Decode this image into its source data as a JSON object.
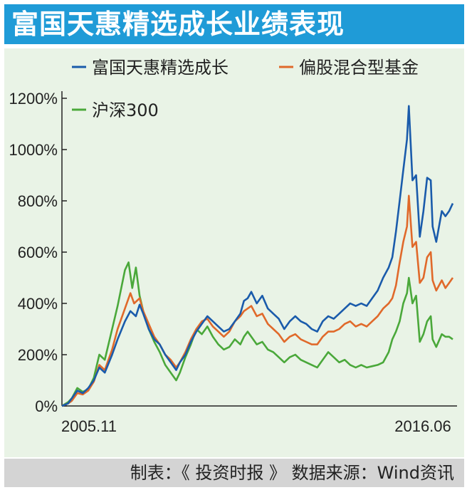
{
  "header": {
    "title": "富国天惠精选成长业绩表现"
  },
  "footer": {
    "text": "制表：《 投资时报 》 数据来源：Wind资讯"
  },
  "colors": {
    "title_bg": "#1f9bd7",
    "panel_bg": "#e9f3e6",
    "footer_bg": "#d4d4d4"
  },
  "chart_data": {
    "type": "line",
    "title": "",
    "xlabel": "",
    "ylabel": "",
    "x_tick_labels": [
      "2005.11",
      "2016.06"
    ],
    "x_start": 2005.83,
    "x_end": 2016.5,
    "ylim": [
      0,
      1200
    ],
    "y_ticks": [
      0,
      200,
      400,
      600,
      800,
      1000,
      1200
    ],
    "y_tick_labels": [
      "0%",
      "200%",
      "400%",
      "600%",
      "800%",
      "1000%",
      "1200%"
    ],
    "grid": false,
    "legend_position": "top",
    "series": [
      {
        "name": "富国天惠精选成长",
        "color": "#1a5bab",
        "points": [
          [
            2005.83,
            0
          ],
          [
            2006.0,
            10
          ],
          [
            2006.1,
            30
          ],
          [
            2006.25,
            60
          ],
          [
            2006.4,
            50
          ],
          [
            2006.55,
            70
          ],
          [
            2006.7,
            100
          ],
          [
            2006.85,
            150
          ],
          [
            2007.0,
            130
          ],
          [
            2007.2,
            200
          ],
          [
            2007.35,
            260
          ],
          [
            2007.55,
            330
          ],
          [
            2007.7,
            370
          ],
          [
            2007.85,
            350
          ],
          [
            2007.95,
            395
          ],
          [
            2008.05,
            360
          ],
          [
            2008.2,
            300
          ],
          [
            2008.35,
            260
          ],
          [
            2008.5,
            240
          ],
          [
            2008.65,
            200
          ],
          [
            2008.8,
            170
          ],
          [
            2008.95,
            140
          ],
          [
            2009.05,
            170
          ],
          [
            2009.2,
            200
          ],
          [
            2009.35,
            250
          ],
          [
            2009.5,
            290
          ],
          [
            2009.65,
            320
          ],
          [
            2009.8,
            350
          ],
          [
            2009.95,
            330
          ],
          [
            2010.1,
            310
          ],
          [
            2010.25,
            290
          ],
          [
            2010.4,
            300
          ],
          [
            2010.55,
            330
          ],
          [
            2010.7,
            360
          ],
          [
            2010.8,
            410
          ],
          [
            2010.9,
            420
          ],
          [
            2011.0,
            445
          ],
          [
            2011.15,
            400
          ],
          [
            2011.3,
            430
          ],
          [
            2011.45,
            380
          ],
          [
            2011.6,
            360
          ],
          [
            2011.75,
            340
          ],
          [
            2011.9,
            300
          ],
          [
            2012.05,
            330
          ],
          [
            2012.2,
            350
          ],
          [
            2012.35,
            330
          ],
          [
            2012.5,
            320
          ],
          [
            2012.65,
            300
          ],
          [
            2012.8,
            290
          ],
          [
            2012.95,
            330
          ],
          [
            2013.1,
            350
          ],
          [
            2013.25,
            340
          ],
          [
            2013.4,
            360
          ],
          [
            2013.55,
            380
          ],
          [
            2013.7,
            400
          ],
          [
            2013.85,
            390
          ],
          [
            2014.0,
            400
          ],
          [
            2014.15,
            390
          ],
          [
            2014.3,
            420
          ],
          [
            2014.45,
            450
          ],
          [
            2014.6,
            500
          ],
          [
            2014.75,
            540
          ],
          [
            2014.85,
            580
          ],
          [
            2014.95,
            680
          ],
          [
            2015.05,
            800
          ],
          [
            2015.15,
            920
          ],
          [
            2015.25,
            1040
          ],
          [
            2015.3,
            1170
          ],
          [
            2015.4,
            880
          ],
          [
            2015.5,
            900
          ],
          [
            2015.6,
            660
          ],
          [
            2015.7,
            760
          ],
          [
            2015.8,
            890
          ],
          [
            2015.9,
            880
          ],
          [
            2015.95,
            700
          ],
          [
            2016.05,
            640
          ],
          [
            2016.2,
            760
          ],
          [
            2016.3,
            740
          ],
          [
            2016.4,
            760
          ],
          [
            2016.5,
            790
          ]
        ]
      },
      {
        "name": "偏股混合型基金",
        "color": "#e0692a",
        "points": [
          [
            2005.83,
            0
          ],
          [
            2006.0,
            10
          ],
          [
            2006.1,
            20
          ],
          [
            2006.25,
            50
          ],
          [
            2006.4,
            45
          ],
          [
            2006.55,
            60
          ],
          [
            2006.7,
            95
          ],
          [
            2006.85,
            160
          ],
          [
            2007.0,
            140
          ],
          [
            2007.2,
            220
          ],
          [
            2007.35,
            300
          ],
          [
            2007.55,
            380
          ],
          [
            2007.7,
            440
          ],
          [
            2007.8,
            400
          ],
          [
            2007.95,
            420
          ],
          [
            2008.05,
            370
          ],
          [
            2008.2,
            320
          ],
          [
            2008.35,
            270
          ],
          [
            2008.5,
            240
          ],
          [
            2008.65,
            200
          ],
          [
            2008.8,
            180
          ],
          [
            2008.95,
            150
          ],
          [
            2009.05,
            170
          ],
          [
            2009.2,
            210
          ],
          [
            2009.35,
            260
          ],
          [
            2009.5,
            300
          ],
          [
            2009.65,
            330
          ],
          [
            2009.8,
            340
          ],
          [
            2009.95,
            310
          ],
          [
            2010.1,
            290
          ],
          [
            2010.25,
            270
          ],
          [
            2010.4,
            290
          ],
          [
            2010.55,
            330
          ],
          [
            2010.7,
            350
          ],
          [
            2010.8,
            370
          ],
          [
            2010.9,
            380
          ],
          [
            2011.0,
            390
          ],
          [
            2011.15,
            350
          ],
          [
            2011.3,
            360
          ],
          [
            2011.45,
            320
          ],
          [
            2011.6,
            300
          ],
          [
            2011.75,
            280
          ],
          [
            2011.9,
            250
          ],
          [
            2012.05,
            270
          ],
          [
            2012.2,
            280
          ],
          [
            2012.35,
            260
          ],
          [
            2012.5,
            250
          ],
          [
            2012.65,
            240
          ],
          [
            2012.8,
            240
          ],
          [
            2012.95,
            270
          ],
          [
            2013.1,
            290
          ],
          [
            2013.25,
            290
          ],
          [
            2013.4,
            300
          ],
          [
            2013.55,
            320
          ],
          [
            2013.7,
            330
          ],
          [
            2013.85,
            310
          ],
          [
            2014.0,
            320
          ],
          [
            2014.15,
            310
          ],
          [
            2014.3,
            330
          ],
          [
            2014.45,
            350
          ],
          [
            2014.6,
            380
          ],
          [
            2014.75,
            400
          ],
          [
            2014.85,
            420
          ],
          [
            2014.95,
            470
          ],
          [
            2015.05,
            560
          ],
          [
            2015.15,
            640
          ],
          [
            2015.25,
            700
          ],
          [
            2015.3,
            820
          ],
          [
            2015.4,
            620
          ],
          [
            2015.5,
            640
          ],
          [
            2015.6,
            480
          ],
          [
            2015.7,
            500
          ],
          [
            2015.8,
            580
          ],
          [
            2015.9,
            600
          ],
          [
            2015.95,
            490
          ],
          [
            2016.05,
            450
          ],
          [
            2016.2,
            490
          ],
          [
            2016.3,
            460
          ],
          [
            2016.4,
            480
          ],
          [
            2016.5,
            500
          ]
        ]
      },
      {
        "name": "沪深300",
        "color": "#4aa83a",
        "points": [
          [
            2005.83,
            0
          ],
          [
            2006.0,
            15
          ],
          [
            2006.1,
            30
          ],
          [
            2006.25,
            70
          ],
          [
            2006.4,
            55
          ],
          [
            2006.55,
            65
          ],
          [
            2006.7,
            110
          ],
          [
            2006.85,
            200
          ],
          [
            2007.0,
            180
          ],
          [
            2007.2,
            300
          ],
          [
            2007.35,
            390
          ],
          [
            2007.55,
            530
          ],
          [
            2007.65,
            560
          ],
          [
            2007.75,
            460
          ],
          [
            2007.85,
            540
          ],
          [
            2007.95,
            430
          ],
          [
            2008.05,
            370
          ],
          [
            2008.2,
            300
          ],
          [
            2008.35,
            250
          ],
          [
            2008.5,
            210
          ],
          [
            2008.65,
            160
          ],
          [
            2008.8,
            130
          ],
          [
            2008.95,
            100
          ],
          [
            2009.05,
            130
          ],
          [
            2009.2,
            190
          ],
          [
            2009.35,
            240
          ],
          [
            2009.5,
            300
          ],
          [
            2009.65,
            280
          ],
          [
            2009.8,
            310
          ],
          [
            2009.95,
            270
          ],
          [
            2010.1,
            240
          ],
          [
            2010.25,
            220
          ],
          [
            2010.4,
            230
          ],
          [
            2010.55,
            260
          ],
          [
            2010.7,
            240
          ],
          [
            2010.8,
            270
          ],
          [
            2010.9,
            290
          ],
          [
            2011.0,
            270
          ],
          [
            2011.15,
            240
          ],
          [
            2011.3,
            250
          ],
          [
            2011.45,
            220
          ],
          [
            2011.6,
            210
          ],
          [
            2011.75,
            190
          ],
          [
            2011.9,
            170
          ],
          [
            2012.05,
            190
          ],
          [
            2012.2,
            200
          ],
          [
            2012.35,
            180
          ],
          [
            2012.5,
            170
          ],
          [
            2012.65,
            160
          ],
          [
            2012.8,
            150
          ],
          [
            2012.95,
            180
          ],
          [
            2013.1,
            210
          ],
          [
            2013.25,
            190
          ],
          [
            2013.4,
            170
          ],
          [
            2013.55,
            180
          ],
          [
            2013.7,
            160
          ],
          [
            2013.85,
            150
          ],
          [
            2014.0,
            160
          ],
          [
            2014.15,
            150
          ],
          [
            2014.3,
            155
          ],
          [
            2014.45,
            160
          ],
          [
            2014.6,
            170
          ],
          [
            2014.75,
            210
          ],
          [
            2014.85,
            260
          ],
          [
            2014.95,
            290
          ],
          [
            2015.05,
            330
          ],
          [
            2015.15,
            400
          ],
          [
            2015.25,
            440
          ],
          [
            2015.3,
            500
          ],
          [
            2015.4,
            400
          ],
          [
            2015.5,
            430
          ],
          [
            2015.6,
            250
          ],
          [
            2015.7,
            280
          ],
          [
            2015.8,
            330
          ],
          [
            2015.9,
            350
          ],
          [
            2015.95,
            260
          ],
          [
            2016.05,
            230
          ],
          [
            2016.2,
            280
          ],
          [
            2016.3,
            270
          ],
          [
            2016.4,
            270
          ],
          [
            2016.5,
            260
          ]
        ]
      }
    ]
  }
}
